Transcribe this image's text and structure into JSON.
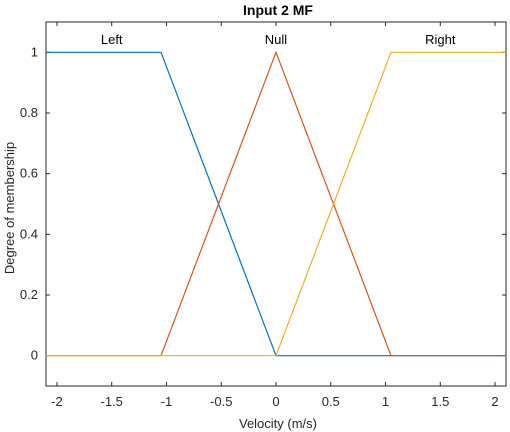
{
  "chart_data": {
    "type": "line",
    "title": "Input 2 MF",
    "xlabel": "Velocity (m/s)",
    "ylabel": "Degree of membership",
    "xlim": [
      -2.1,
      2.1
    ],
    "ylim": [
      -0.1,
      1.1
    ],
    "xticks": [
      -2,
      -1.5,
      -1,
      -0.5,
      0,
      0.5,
      1,
      1.5,
      2
    ],
    "xtick_labels": [
      "-2",
      "-1.5",
      "-1",
      "-0.5",
      "0",
      "0.5",
      "1",
      "1.5",
      "2"
    ],
    "yticks": [
      0,
      0.2,
      0.4,
      0.6,
      0.8,
      1
    ],
    "ytick_labels": [
      "0",
      "0.2",
      "0.4",
      "0.6",
      "0.8",
      "1"
    ],
    "grid": false,
    "series": [
      {
        "name": "Left",
        "color": "#0072BD",
        "x": [
          -2.1,
          -1.05,
          0,
          2.1
        ],
        "y": [
          1,
          1,
          0,
          0
        ],
        "label_x": -1.5
      },
      {
        "name": "Null",
        "color": "#D95319",
        "x": [
          -2.1,
          -1.05,
          0,
          1.05,
          2.1
        ],
        "y": [
          0,
          0,
          1,
          0,
          0
        ],
        "label_x": 0
      },
      {
        "name": "Right",
        "color": "#EDB120",
        "x": [
          -2.1,
          0,
          1.05,
          2.1
        ],
        "y": [
          0,
          0,
          1,
          1
        ],
        "label_x": 1.5
      }
    ]
  }
}
